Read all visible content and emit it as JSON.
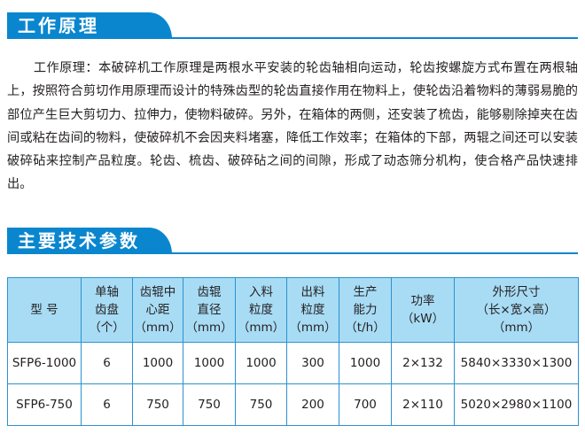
{
  "section1": {
    "title": "工作原理",
    "paragraph": "工作原理：本破碎机工作原理是两根水平安装的轮齿轴相向运动，轮齿按螺旋方式布置在两根轴上，按照符合剪切作用原理而设计的特殊齿型的轮齿直接作用在物料上，使轮齿沿着物料的薄弱易脆的部位产生巨大剪切力、拉伸力，使物料破碎。另外，在箱体的两侧，还安装了梳齿，能够剔除掉夹在齿间或粘在齿间的物料，使破碎机不会因夹料堵塞，降低工作效率；在箱体的下部，两辊之间还可以安装破碎砧来控制产品粒度。轮齿、梳齿、破碎砧之间的间隙，形成了动态筛分机构，使合格产品快速排出。"
  },
  "section2": {
    "title": "主要技术参数",
    "table": {
      "headers": [
        [
          "型 号"
        ],
        [
          "单轴",
          "齿盘",
          "（个）"
        ],
        [
          "齿辊中",
          "心距",
          "（mm）"
        ],
        [
          "齿辊",
          "直径",
          "（mm）"
        ],
        [
          "入料",
          "粒度",
          "（mm）"
        ],
        [
          "出料",
          "粒度",
          "（mm）"
        ],
        [
          "生产",
          "能力",
          "（t/h）"
        ],
        [
          "功率",
          "（kW）"
        ],
        [
          "外形尺寸",
          "（长×宽×高）",
          "（mm）"
        ]
      ],
      "rows": [
        [
          "SFP6-1000",
          "6",
          "1000",
          "1000",
          "1000",
          "300",
          "1000",
          "2×132",
          "5840×3330×1300"
        ],
        [
          "SFP6-750",
          "6",
          "750",
          "750",
          "750",
          "200",
          "700",
          "2×110",
          "5020×2980×1100"
        ]
      ]
    }
  },
  "colors": {
    "accent": "#0a86cf",
    "header_bg": "#a8dcf5",
    "border": "#2a92d2"
  }
}
